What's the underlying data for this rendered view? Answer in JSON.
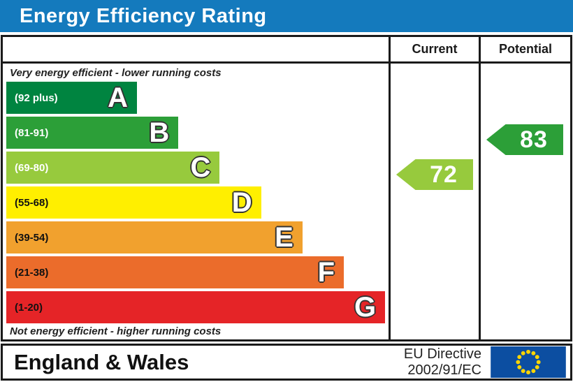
{
  "title": "Energy Efficiency Rating",
  "header": {
    "current": "Current",
    "potential": "Potential"
  },
  "notes": {
    "top": "Very energy efficient - lower running costs",
    "bottom": "Not energy efficient - higher running costs"
  },
  "footer": {
    "region": "England & Wales",
    "directive": [
      "EU Directive",
      "2002/91/EC"
    ]
  },
  "colors": {
    "title_bar": "#147abd",
    "border": "#1a1a1a",
    "eu_flag_blue": "#0c4ea1",
    "eu_star_yellow": "#ffd500"
  },
  "chart_data": {
    "type": "bar",
    "title": "Energy Efficiency Rating",
    "orientation": "horizontal",
    "bands": [
      {
        "letter": "A",
        "label": "(92 plus)",
        "min": 92,
        "max": 100,
        "color": "#008440",
        "label_color": "#ffffff"
      },
      {
        "letter": "B",
        "label": "(81-91)",
        "min": 81,
        "max": 91,
        "color": "#2c9f38",
        "label_color": "#ffffff"
      },
      {
        "letter": "C",
        "label": "(69-80)",
        "min": 69,
        "max": 80,
        "color": "#97ca3d",
        "label_color": "#ffffff"
      },
      {
        "letter": "D",
        "label": "(55-68)",
        "min": 55,
        "max": 68,
        "color": "#ffef00",
        "label_color": "#111111"
      },
      {
        "letter": "E",
        "label": "(39-54)",
        "min": 39,
        "max": 54,
        "color": "#f1a12e",
        "label_color": "#111111"
      },
      {
        "letter": "F",
        "label": "(21-38)",
        "min": 21,
        "max": 38,
        "color": "#eb6c2b",
        "label_color": "#111111"
      },
      {
        "letter": "G",
        "label": "(1-20)",
        "min": 1,
        "max": 20,
        "color": "#e52427",
        "label_color": "#111111"
      }
    ],
    "current": {
      "value": 72,
      "band": "C"
    },
    "potential": {
      "value": 83,
      "band": "B"
    },
    "annotations": {
      "top": "Very energy efficient - lower running costs",
      "bottom": "Not energy efficient - higher running costs"
    },
    "columns": [
      "Current",
      "Potential"
    ],
    "footer": [
      "England & Wales",
      "EU Directive 2002/91/EC"
    ]
  }
}
